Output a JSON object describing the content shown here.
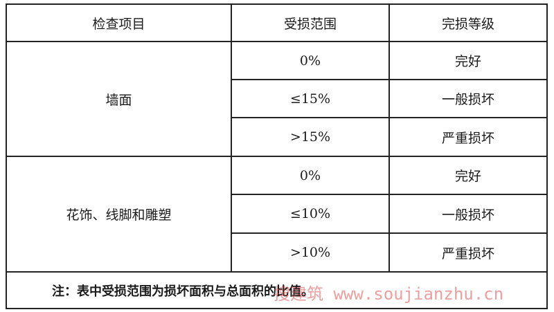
{
  "table": {
    "headers": [
      "检查项目",
      "受损范围",
      "完损等级"
    ],
    "groups": [
      {
        "item": "墙面",
        "rows": [
          {
            "range": "0%",
            "grade": "完好"
          },
          {
            "range": "≤15%",
            "grade": "一般损坏"
          },
          {
            "range": ">15%",
            "grade": "严重损坏"
          }
        ]
      },
      {
        "item": "花饰、线脚和雕塑",
        "rows": [
          {
            "range": "0%",
            "grade": "完好"
          },
          {
            "range": "≤10%",
            "grade": "一般损坏"
          },
          {
            "range": ">10%",
            "grade": "严重损坏"
          }
        ]
      }
    ],
    "note": "注：表中受损范围为损坏面积与总面积的比值。"
  },
  "watermark": "搜建筑 www.soujianzhu.cn"
}
